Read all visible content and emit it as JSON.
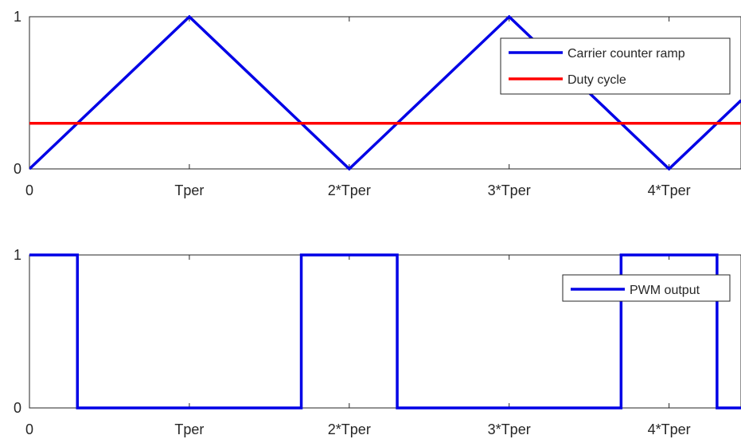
{
  "chart_data": [
    {
      "type": "line",
      "title": "",
      "xlabel": "",
      "ylabel": "",
      "xlim": [
        0,
        4.45
      ],
      "ylim": [
        0,
        1
      ],
      "x_ticks": [
        {
          "value": 0,
          "label": "0"
        },
        {
          "value": 1,
          "label": "Tper"
        },
        {
          "value": 2,
          "label": "2*Tper"
        },
        {
          "value": 3,
          "label": "3*Tper"
        },
        {
          "value": 4,
          "label": "4*Tper"
        }
      ],
      "y_ticks": [
        {
          "value": 0,
          "label": "0"
        },
        {
          "value": 1,
          "label": "1"
        }
      ],
      "grid": false,
      "legend_position": "top-right",
      "series": [
        {
          "name": "Carrier counter ramp",
          "color": "#0000e6",
          "x": [
            0,
            1,
            2,
            3,
            4,
            4.45
          ],
          "y": [
            0,
            1,
            0,
            1,
            0,
            0.45
          ]
        },
        {
          "name": "Duty cycle",
          "color": "#ff0000",
          "x": [
            0,
            4.45
          ],
          "y": [
            0.3,
            0.3
          ]
        }
      ]
    },
    {
      "type": "line",
      "title": "",
      "xlabel": "",
      "ylabel": "",
      "xlim": [
        0,
        4.45
      ],
      "ylim": [
        0,
        1
      ],
      "x_ticks": [
        {
          "value": 0,
          "label": "0"
        },
        {
          "value": 1,
          "label": "Tper"
        },
        {
          "value": 2,
          "label": "2*Tper"
        },
        {
          "value": 3,
          "label": "3*Tper"
        },
        {
          "value": 4,
          "label": "4*Tper"
        }
      ],
      "y_ticks": [
        {
          "value": 0,
          "label": "0"
        },
        {
          "value": 1,
          "label": "1"
        }
      ],
      "grid": false,
      "legend_position": "right",
      "series": [
        {
          "name": "PWM output",
          "color": "#0000e6",
          "x": [
            0,
            0.3,
            0.3,
            1.7,
            1.7,
            2.3,
            2.3,
            3.7,
            3.7,
            4.3,
            4.3,
            4.45
          ],
          "y": [
            1,
            1,
            0,
            0,
            1,
            1,
            0,
            0,
            1,
            1,
            0,
            0
          ]
        }
      ]
    }
  ]
}
